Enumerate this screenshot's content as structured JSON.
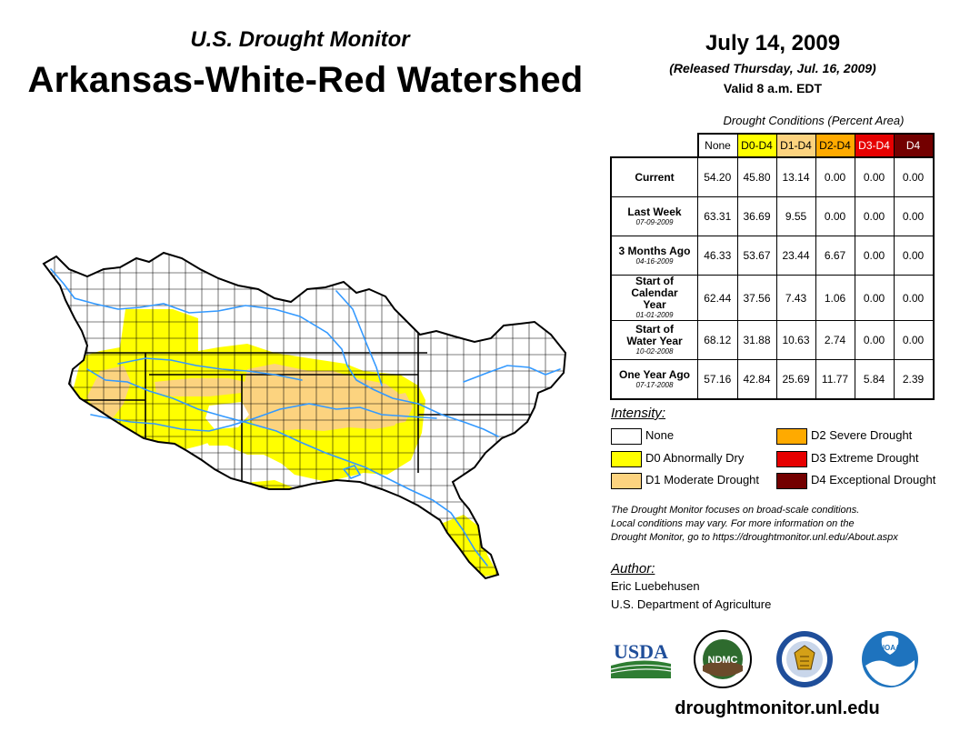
{
  "header": {
    "subtitle": "U.S. Drought Monitor",
    "title": "Arkansas-White-Red Watershed",
    "date": "July 14, 2009",
    "released": "(Released Thursday, Jul. 16, 2009)",
    "valid": "Valid 8 a.m. EDT"
  },
  "conditions": {
    "caption": "Drought Conditions (Percent Area)",
    "columns": [
      {
        "label": "None",
        "color": "#ffffff",
        "text_color": "#000000"
      },
      {
        "label": "D0-D4",
        "color": "#ffff00",
        "text_color": "#000000"
      },
      {
        "label": "D1-D4",
        "color": "#fcd37f",
        "text_color": "#000000"
      },
      {
        "label": "D2-D4",
        "color": "#ffaa00",
        "text_color": "#000000"
      },
      {
        "label": "D3-D4",
        "color": "#e60000",
        "text_color": "#ffffff"
      },
      {
        "label": "D4",
        "color": "#730000",
        "text_color": "#ffffff"
      }
    ],
    "rows": [
      {
        "label": "Current",
        "date": "",
        "values": [
          "54.20",
          "45.80",
          "13.14",
          "0.00",
          "0.00",
          "0.00"
        ]
      },
      {
        "label": "Last Week",
        "date": "07-09-2009",
        "values": [
          "63.31",
          "36.69",
          "9.55",
          "0.00",
          "0.00",
          "0.00"
        ]
      },
      {
        "label": "3 Months Ago",
        "date": "04-16-2009",
        "values": [
          "46.33",
          "53.67",
          "23.44",
          "6.67",
          "0.00",
          "0.00"
        ]
      },
      {
        "label": "Start of Calendar Year",
        "date": "01-01-2009",
        "values": [
          "62.44",
          "37.56",
          "7.43",
          "1.06",
          "0.00",
          "0.00"
        ]
      },
      {
        "label": "Start of Water Year",
        "date": "10-02-2008",
        "values": [
          "68.12",
          "31.88",
          "10.63",
          "2.74",
          "0.00",
          "0.00"
        ]
      },
      {
        "label": "One Year Ago",
        "date": "07-17-2008",
        "values": [
          "57.16",
          "42.84",
          "25.69",
          "11.77",
          "5.84",
          "2.39"
        ]
      }
    ]
  },
  "legend": {
    "title": "Intensity:",
    "items": [
      {
        "label": "None",
        "color": "#ffffff"
      },
      {
        "label": "D0 Abnormally Dry",
        "color": "#ffff00"
      },
      {
        "label": "D1 Moderate Drought",
        "color": "#fcd37f"
      },
      {
        "label": "D2 Severe Drought",
        "color": "#ffaa00"
      },
      {
        "label": "D3 Extreme Drought",
        "color": "#e60000"
      },
      {
        "label": "D4 Exceptional Drought",
        "color": "#730000"
      }
    ]
  },
  "note": {
    "line1": "The Drought Monitor focuses on broad-scale conditions.",
    "line2": "Local conditions may vary. For more information on the",
    "line3": "Drought Monitor, go to https://droughtmonitor.unl.edu/About.aspx"
  },
  "author": {
    "title": "Author:",
    "name": "Eric Luebehusen",
    "org": "U.S. Department of Agriculture"
  },
  "logos": {
    "usda": "USDA",
    "ndmc": "NDMC",
    "noaa": "NOAA"
  },
  "footer": {
    "url": "droughtmonitor.unl.edu"
  },
  "map_colors": {
    "none": "#ffffff",
    "d0": "#ffff00",
    "d1": "#fcd37f",
    "river": "#3399ff",
    "border": "#000000"
  }
}
